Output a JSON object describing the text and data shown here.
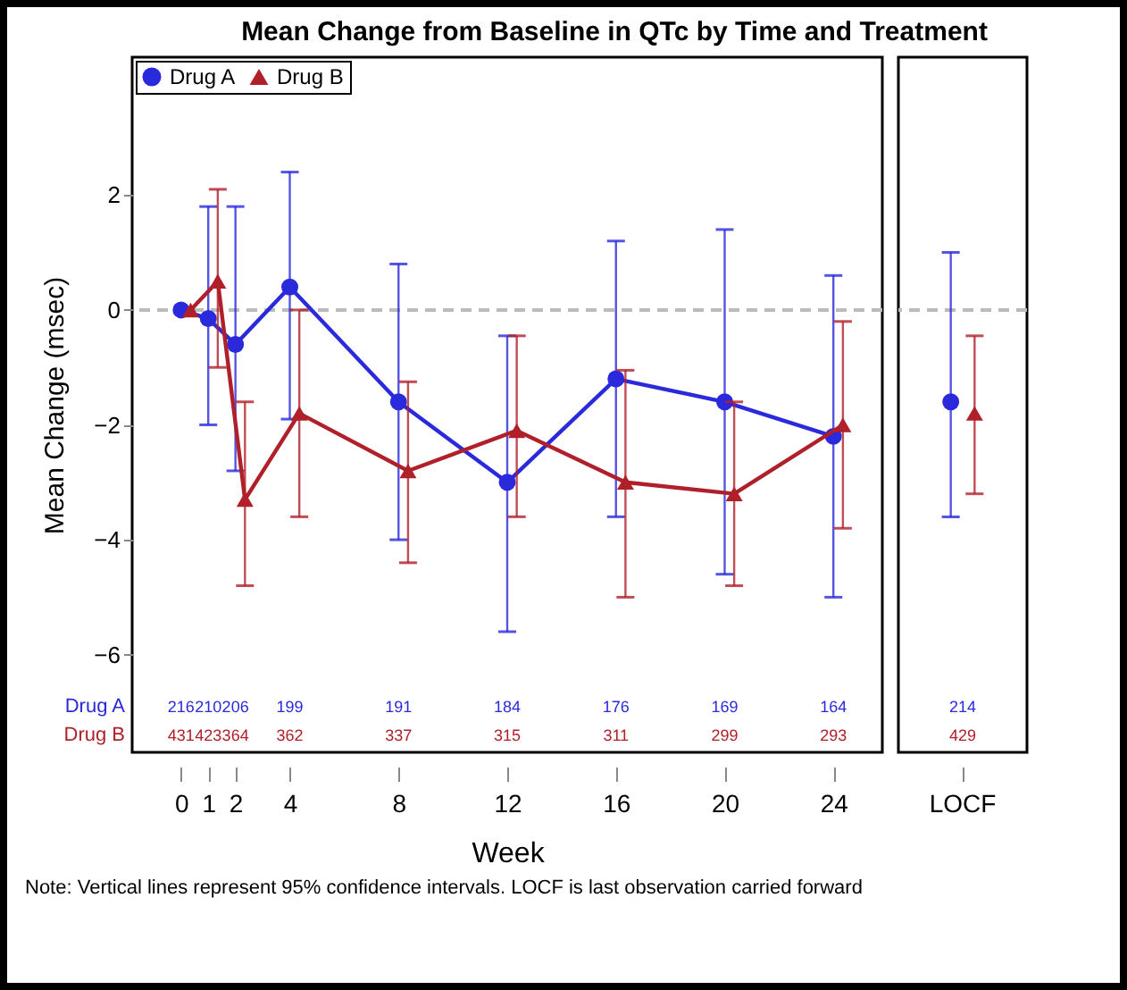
{
  "chart_data": [
    {
      "type": "line",
      "title": "Mean Change from Baseline in QTc by Time and Treatment",
      "xlabel": "Week",
      "ylabel": "Mean Change (msec)",
      "xlim": [
        -1.8,
        25.8
      ],
      "xticks": [
        0,
        1,
        2,
        4,
        8,
        12,
        16,
        20,
        24
      ],
      "ylim": [
        -7.7,
        4.4
      ],
      "yticks": [
        -6,
        -4,
        -2,
        0,
        2
      ],
      "legend": "top left",
      "line_style": "solid",
      "grid": false,
      "series": [
        {
          "name": "Drug A",
          "color": "#2a2adc",
          "marker": "circle",
          "x": [
            0,
            1,
            2,
            4,
            8,
            12,
            16,
            20,
            24
          ],
          "values": [
            0,
            -0.15,
            -0.6,
            0.4,
            -1.6,
            -3.0,
            -1.2,
            -1.6,
            -2.2
          ],
          "errors": [
            null,
            [
              -2.0,
              1.8
            ],
            [
              -2.8,
              1.8
            ],
            [
              -1.9,
              2.4
            ],
            [
              -4.0,
              0.8
            ],
            [
              -5.6,
              -0.45
            ],
            [
              -3.6,
              1.2
            ],
            [
              -4.6,
              1.4
            ],
            [
              -5.0,
              0.6
            ]
          ]
        },
        {
          "name": "Drug B",
          "color": "#b0202a",
          "marker": "triangle",
          "x": [
            0.35,
            1.35,
            2.35,
            4.35,
            8.35,
            12.35,
            16.35,
            20.35,
            24.35
          ],
          "values": [
            0,
            0.5,
            -3.3,
            -1.8,
            -2.8,
            -2.1,
            -3.0,
            -3.2,
            -2.0
          ],
          "errors": [
            null,
            [
              -1.0,
              2.1
            ],
            [
              -4.8,
              -1.6
            ],
            [
              -3.6,
              0
            ],
            [
              -4.4,
              -1.25
            ],
            [
              -3.6,
              -0.45
            ],
            [
              -5.0,
              -1.05
            ],
            [
              -4.8,
              -1.6
            ],
            [
              -3.8,
              -0.2
            ]
          ]
        }
      ],
      "ref_lines": [
        {
          "axis": "y",
          "value": 0,
          "color": "#bbbbbb",
          "line_style": "dashed"
        }
      ],
      "annotations": [
        "216",
        "210",
        "206",
        "199",
        "191",
        "184",
        "176",
        "169",
        "164",
        "431",
        "423",
        "364",
        "362",
        "337",
        "315",
        "311",
        "299",
        "293",
        "Note: Vertical lines represent 95% confidence intervals.  LOCF is last observation carried forward"
      ]
    },
    {
      "type": "scatter",
      "categories": [
        "LOCF"
      ],
      "ylim": [
        -7.7,
        4.4
      ],
      "tick_labels": "x",
      "series": [
        {
          "color": "#2a2adc",
          "marker": "circle",
          "values": [
            -1.6
          ],
          "errors": [
            [
              -3.6,
              1.0
            ]
          ]
        },
        {
          "color": "#b0202a",
          "marker": "triangle",
          "values": [
            -1.8
          ],
          "errors": [
            [
              -3.2,
              -0.45
            ]
          ]
        }
      ],
      "ref_lines": [
        {
          "axis": "y",
          "value": 0,
          "color": "#bbbbbb",
          "line_style": "dashed"
        }
      ],
      "annotations": [
        "214",
        "429"
      ]
    }
  ]
}
